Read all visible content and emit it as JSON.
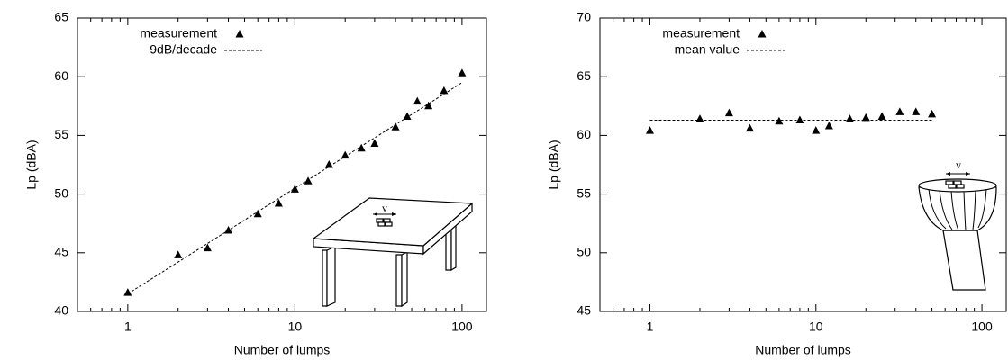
{
  "chart_data": [
    {
      "type": "scatter",
      "xlabel": "Number of lumps",
      "ylabel": "Lp (dBA)",
      "xscale": "log",
      "xlim": [
        0.5,
        140
      ],
      "ylim": [
        40,
        65
      ],
      "xticks": [
        1,
        10,
        100
      ],
      "xminor_ticks": [
        0.5,
        0.6,
        0.7,
        0.8,
        0.9,
        2,
        3,
        4,
        5,
        6,
        7,
        8,
        9,
        20,
        30,
        40,
        50,
        60,
        70,
        80,
        90
      ],
      "yticks": [
        40,
        45,
        50,
        55,
        60,
        65
      ],
      "legend": "upper left",
      "annotation": "v",
      "series": [
        {
          "name": "measurement",
          "mode": "markers",
          "marker": "triangle",
          "color": "#000000",
          "x": [
            1,
            2,
            3,
            4,
            6,
            8,
            10,
            12,
            16,
            20,
            25,
            30,
            40,
            47,
            54,
            63,
            78,
            100
          ],
          "values": [
            41.6,
            44.8,
            45.4,
            46.9,
            48.3,
            49.2,
            50.4,
            51.1,
            52.5,
            53.3,
            53.9,
            54.3,
            55.7,
            56.6,
            57.9,
            57.5,
            58.8,
            60.3
          ]
        },
        {
          "name": "9dB/decade",
          "mode": "line",
          "dash": "dashed",
          "color": "#000000",
          "x": [
            1,
            100
          ],
          "values": [
            41.5,
            59.5
          ]
        }
      ]
    },
    {
      "type": "scatter",
      "xlabel": "Number of lumps",
      "ylabel": "Lp (dBA)",
      "xscale": "log",
      "xlim": [
        0.5,
        140
      ],
      "ylim": [
        45,
        70
      ],
      "xticks": [
        1,
        10,
        100
      ],
      "xminor_ticks": [
        0.5,
        0.6,
        0.7,
        0.8,
        0.9,
        2,
        3,
        4,
        5,
        6,
        7,
        8,
        9,
        20,
        30,
        40,
        50,
        60,
        70,
        80,
        90
      ],
      "yticks": [
        45,
        50,
        55,
        60,
        65,
        70
      ],
      "legend": "upper left",
      "annotation": "v",
      "series": [
        {
          "name": "measurement",
          "mode": "markers",
          "marker": "triangle",
          "color": "#000000",
          "x": [
            1,
            2,
            3,
            4,
            6,
            8,
            10,
            12,
            16,
            20,
            25,
            32,
            40,
            50
          ],
          "values": [
            60.4,
            61.4,
            61.9,
            60.6,
            61.2,
            61.3,
            60.4,
            60.8,
            61.4,
            61.5,
            61.6,
            62.0,
            62.0,
            61.8
          ]
        },
        {
          "name": "mean value",
          "mode": "line",
          "dash": "dashed",
          "color": "#000000",
          "x": [
            1,
            50
          ],
          "values": [
            61.3,
            61.3
          ]
        }
      ]
    }
  ]
}
